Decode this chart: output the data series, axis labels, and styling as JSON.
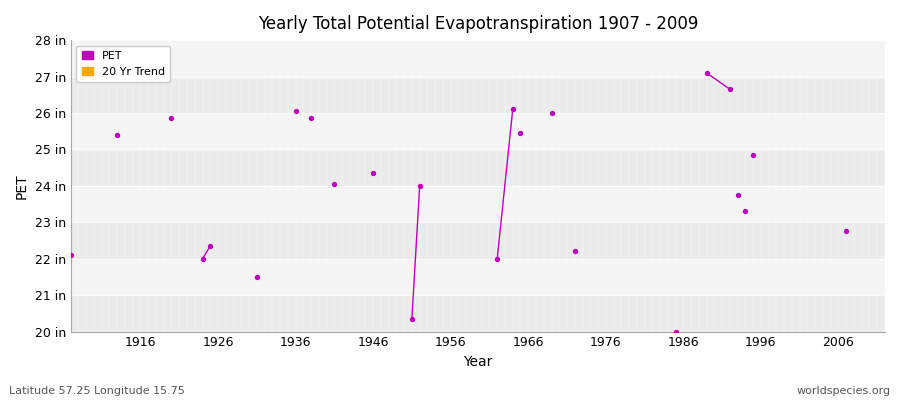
{
  "title": "Yearly Total Potential Evapotranspiration 1907 - 2009",
  "xlabel": "Year",
  "ylabel": "PET",
  "subtitle": "Latitude 57.25 Longitude 15.75",
  "watermark": "worldspecies.org",
  "ylim": [
    20,
    28
  ],
  "xlim": [
    1907,
    2012
  ],
  "ytick_labels": [
    "20 in",
    "21 in",
    "22 in",
    "23 in",
    "24 in",
    "25 in",
    "26 in",
    "27 in",
    "28 in"
  ],
  "ytick_values": [
    20,
    21,
    22,
    23,
    24,
    25,
    26,
    27,
    28
  ],
  "xtick_values": [
    1916,
    1926,
    1936,
    1946,
    1956,
    1966,
    1976,
    1986,
    1996,
    2006
  ],
  "pet_color": "#bb00bb",
  "trend_color": "#ffa500",
  "bg_stripe_odd": "#ebebeb",
  "bg_stripe_even": "#f5f5f5",
  "pet_data": [
    [
      1907,
      22.1
    ],
    [
      1913,
      25.4
    ],
    [
      1920,
      25.85
    ],
    [
      1924,
      22.0
    ],
    [
      1925,
      22.35
    ],
    [
      1931,
      21.5
    ],
    [
      1936,
      26.05
    ],
    [
      1938,
      25.85
    ],
    [
      1941,
      24.05
    ],
    [
      1946,
      24.35
    ],
    [
      1951,
      20.35
    ],
    [
      1952,
      24.0
    ],
    [
      1962,
      22.0
    ],
    [
      1964,
      26.1
    ],
    [
      1965,
      25.45
    ],
    [
      1969,
      26.0
    ],
    [
      1972,
      22.2
    ],
    [
      1985,
      20.0
    ],
    [
      1989,
      27.1
    ],
    [
      1992,
      26.65
    ],
    [
      1993,
      23.75
    ],
    [
      1994,
      23.3
    ],
    [
      1995,
      24.85
    ],
    [
      2007,
      22.75
    ]
  ],
  "line_segments": [
    [
      1924,
      1925
    ],
    [
      1951,
      1952
    ],
    [
      1962,
      1964
    ],
    [
      1989,
      1992
    ]
  ]
}
